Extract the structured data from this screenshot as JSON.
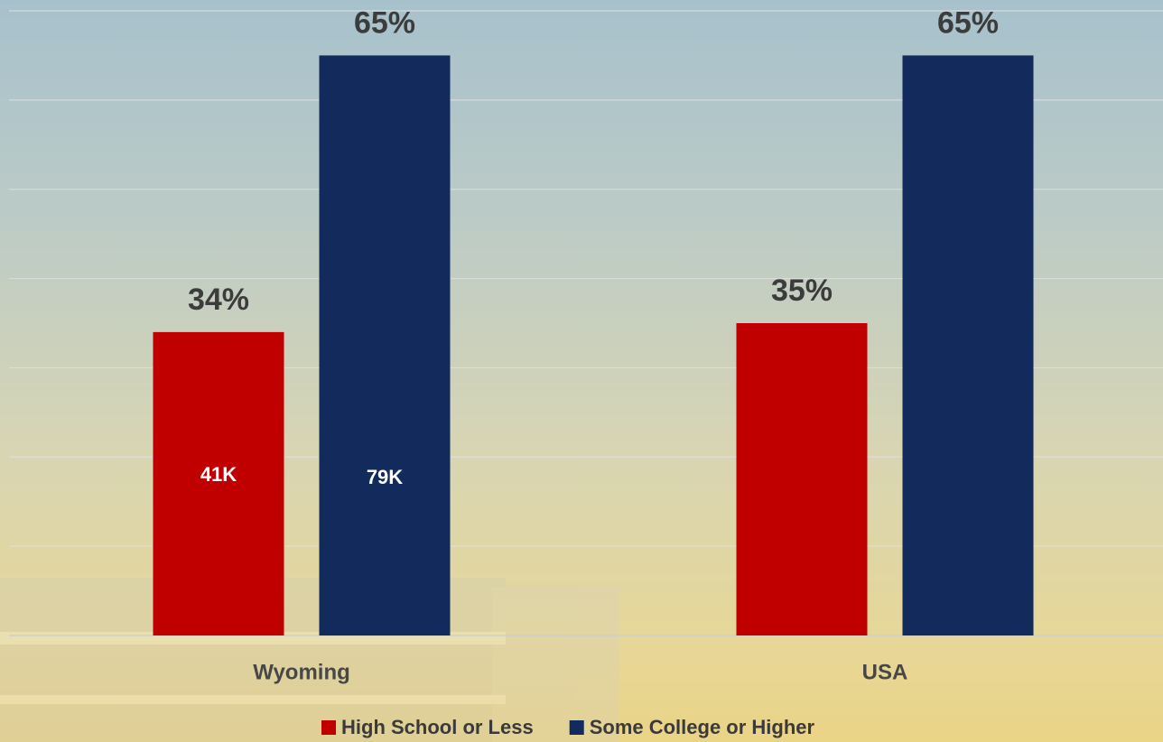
{
  "chart_data": {
    "type": "bar",
    "categories": [
      "Wyoming",
      "USA"
    ],
    "series": [
      {
        "name": "High School or Less",
        "color": "#c00000",
        "values": [
          34,
          35
        ],
        "value_labels": [
          "34%",
          "35%"
        ],
        "inner_labels": [
          "41K",
          null
        ]
      },
      {
        "name": "Some College or Higher",
        "color": "#122a5c",
        "values": [
          65,
          65
        ],
        "value_labels": [
          "65%",
          "65%"
        ],
        "inner_labels": [
          "79K",
          null
        ]
      }
    ],
    "ylim": [
      0,
      70
    ],
    "ygrid": [
      0,
      10,
      20,
      30,
      40,
      50,
      60,
      70
    ],
    "legend": "bottom"
  }
}
